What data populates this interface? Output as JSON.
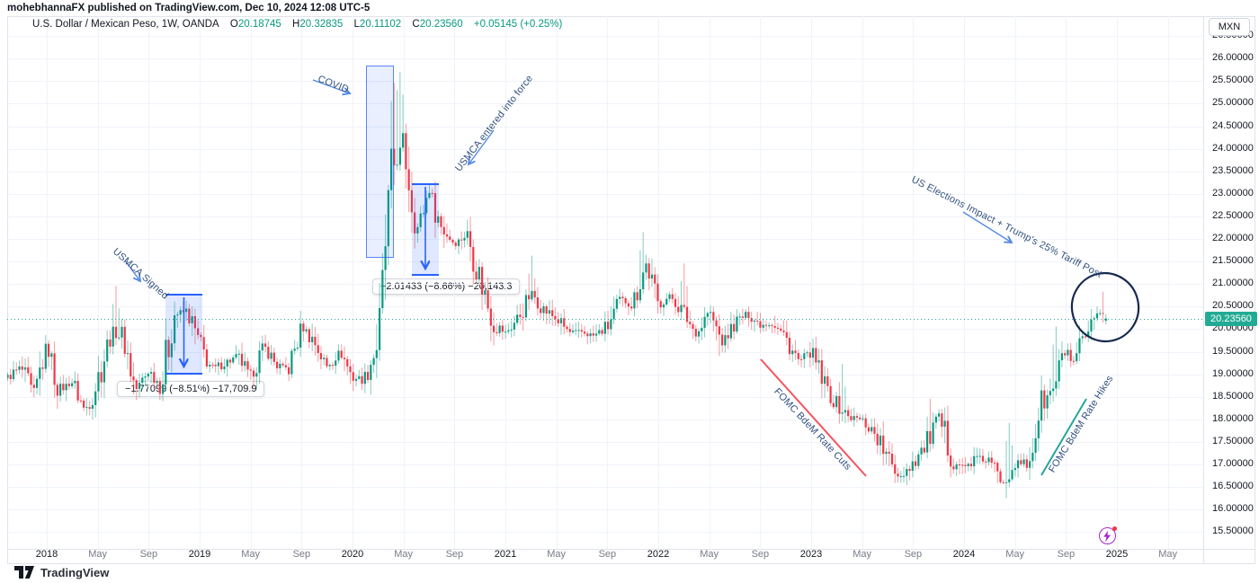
{
  "header": {
    "publisher_line": "mohebhannaFX published on TradingView.com, Dec 10, 2024 12:08 UTC-5"
  },
  "legend": {
    "title": "U.S. Dollar / Mexican Peso, 1W, OANDA",
    "o_label": "O",
    "o_value": "20.18745",
    "h_label": "H",
    "h_value": "20.32835",
    "l_label": "L",
    "l_value": "20.11102",
    "c_label": "C",
    "c_value": "20.23560",
    "change": "+0.05145 (+0.25%)"
  },
  "price_scale": {
    "currency": "MXN",
    "last_price": "20.23560",
    "labels": [
      "26.50000",
      "26.00000",
      "25.50000",
      "25.00000",
      "24.50000",
      "24.00000",
      "23.50000",
      "23.00000",
      "22.50000",
      "22.00000",
      "21.50000",
      "21.00000",
      "20.50000",
      "20.00000",
      "19.50000",
      "19.00000",
      "18.50000",
      "18.00000",
      "17.50000",
      "17.00000",
      "16.50000",
      "16.00000",
      "15.50000"
    ]
  },
  "time_scale": {
    "ticks": [
      {
        "label": "2018",
        "t": 0,
        "major": true
      },
      {
        "label": "May",
        "t": 0.333
      },
      {
        "label": "Sep",
        "t": 0.667
      },
      {
        "label": "2019",
        "t": 1,
        "major": true
      },
      {
        "label": "May",
        "t": 1.333
      },
      {
        "label": "Sep",
        "t": 1.667
      },
      {
        "label": "2020",
        "t": 2,
        "major": true
      },
      {
        "label": "May",
        "t": 2.333
      },
      {
        "label": "Sep",
        "t": 2.667
      },
      {
        "label": "2021",
        "t": 3,
        "major": true
      },
      {
        "label": "May",
        "t": 3.333
      },
      {
        "label": "Sep",
        "t": 3.667
      },
      {
        "label": "2022",
        "t": 4,
        "major": true
      },
      {
        "label": "May",
        "t": 4.333
      },
      {
        "label": "Sep",
        "t": 4.667
      },
      {
        "label": "2023",
        "t": 5,
        "major": true
      },
      {
        "label": "May",
        "t": 5.333
      },
      {
        "label": "Sep",
        "t": 5.667
      },
      {
        "label": "2024",
        "t": 6,
        "major": true
      },
      {
        "label": "May",
        "t": 6.333
      },
      {
        "label": "Sep",
        "t": 6.667
      },
      {
        "label": "2025",
        "t": 7,
        "major": true
      },
      {
        "label": "May",
        "t": 7.333
      }
    ]
  },
  "annotations": {
    "usmca_signed": "USMCA Signed",
    "covid": "COVID",
    "usmca_force": "USMCA entered into force",
    "us_elections": "US Elections Impact + Trump's 25% Tariff Post",
    "fomc_cuts": "FOMC BdeM Rate Cuts",
    "fomc_hikes": "FOMC BdeM Rate Hikes",
    "measure1": "−1.77099 (−8.51%) −17,709.9",
    "measure2": "−2.01433 (−8.66%) −20,143.3"
  },
  "footer": {
    "brand": "TradingView"
  },
  "chart_data": {
    "type": "candlestick",
    "title": "U.S. Dollar / Mexican Peso, 1W, OANDA",
    "timeframe": "1W",
    "x_unit": "years since 2018-01-01",
    "x_visible": [
      -0.26,
      7.57
    ],
    "y_visible": [
      15.11,
      26.94
    ],
    "grid_step_price": 0.5,
    "grid_step_time": 0.3333,
    "current_price": 20.2356,
    "last_bar": {
      "open": 20.18745,
      "high": 20.32835,
      "low": 20.11102,
      "close": 20.2356
    },
    "colors": {
      "up": "#089981",
      "down": "#f23645",
      "grid": "#f0f3fa",
      "price_line": "#26a69a"
    },
    "monthly_closes": [
      [
        -0.256,
        18.93
      ],
      [
        -0.17,
        19.15
      ],
      [
        -0.08,
        18.55
      ],
      [
        0,
        19.66
      ],
      [
        0.08,
        18.62
      ],
      [
        0.17,
        18.84
      ],
      [
        0.25,
        18.18
      ],
      [
        0.33,
        18.86
      ],
      [
        0.42,
        19.9
      ],
      [
        0.5,
        19.86
      ],
      [
        0.58,
        18.65
      ],
      [
        0.67,
        19.09
      ],
      [
        0.75,
        18.72
      ],
      [
        0.83,
        20.34
      ],
      [
        0.92,
        20.39
      ],
      [
        1,
        19.65
      ],
      [
        1.08,
        19.11
      ],
      [
        1.17,
        19.26
      ],
      [
        1.25,
        19.4
      ],
      [
        1.33,
        18.95
      ],
      [
        1.42,
        19.64
      ],
      [
        1.5,
        19.21
      ],
      [
        1.58,
        19.1
      ],
      [
        1.67,
        20.07
      ],
      [
        1.75,
        19.73
      ],
      [
        1.83,
        19.16
      ],
      [
        1.92,
        19.52
      ],
      [
        2,
        18.93
      ],
      [
        2.08,
        18.91
      ],
      [
        2.17,
        19.78
      ],
      [
        2.25,
        23.48
      ],
      [
        2.33,
        24.14
      ],
      [
        2.42,
        22.18
      ],
      [
        2.5,
        23.09
      ],
      [
        2.58,
        22.27
      ],
      [
        2.67,
        21.89
      ],
      [
        2.75,
        22.11
      ],
      [
        2.83,
        21.18
      ],
      [
        2.92,
        20.14
      ],
      [
        3,
        19.91
      ],
      [
        3.08,
        20.23
      ],
      [
        3.17,
        20.81
      ],
      [
        3.25,
        20.44
      ],
      [
        3.33,
        20.24
      ],
      [
        3.42,
        19.92
      ],
      [
        3.5,
        19.94
      ],
      [
        3.58,
        19.85
      ],
      [
        3.67,
        20.06
      ],
      [
        3.75,
        20.64
      ],
      [
        3.83,
        20.56
      ],
      [
        3.92,
        21.45
      ],
      [
        4,
        20.53
      ],
      [
        4.08,
        20.74
      ],
      [
        4.17,
        20.35
      ],
      [
        4.25,
        19.87
      ],
      [
        4.33,
        20.41
      ],
      [
        4.42,
        19.69
      ],
      [
        4.5,
        20.13
      ],
      [
        4.58,
        20.34
      ],
      [
        4.67,
        20.1
      ],
      [
        4.75,
        20.14
      ],
      [
        4.83,
        19.82
      ],
      [
        4.92,
        19.28
      ],
      [
        5,
        19.5
      ],
      [
        5.08,
        18.79
      ],
      [
        5.17,
        18.31
      ],
      [
        5.25,
        18.05
      ],
      [
        5.33,
        17.99
      ],
      [
        5.42,
        17.69
      ],
      [
        5.5,
        17.12
      ],
      [
        5.58,
        16.73
      ],
      [
        5.67,
        17.07
      ],
      [
        5.75,
        17.42
      ],
      [
        5.83,
        18.08
      ],
      [
        5.92,
        17.14
      ],
      [
        6,
        16.92
      ],
      [
        6.08,
        17.16
      ],
      [
        6.17,
        17.06
      ],
      [
        6.25,
        16.6
      ],
      [
        6.33,
        17.02
      ],
      [
        6.42,
        17.0
      ],
      [
        6.5,
        18.31
      ],
      [
        6.58,
        18.62
      ],
      [
        6.67,
        19.6
      ],
      [
        6.71,
        19.18
      ],
      [
        6.75,
        19.5
      ],
      [
        6.83,
        20.02
      ],
      [
        6.92,
        20.38
      ],
      [
        6.943,
        20.236
      ]
    ],
    "spike_highs": [
      [
        0.46,
        20.96
      ],
      [
        2.27,
        25.46
      ],
      [
        2.31,
        25.7
      ],
      [
        3.18,
        21.63
      ],
      [
        3.9,
        22.15
      ],
      [
        4.17,
        21.46
      ],
      [
        5.21,
        19.23
      ],
      [
        5.78,
        18.46
      ],
      [
        6.29,
        17.92
      ],
      [
        6.6,
        20.06
      ],
      [
        6.9,
        20.83
      ]
    ],
    "spike_lows": [
      [
        0.12,
        18.4
      ],
      [
        4.4,
        19.41
      ],
      [
        6.27,
        16.26
      ]
    ],
    "events": [
      {
        "t": 0.92,
        "label": "USMCA Signed"
      },
      {
        "t": 2.2,
        "label": "COVID"
      },
      {
        "t": 2.5,
        "label": "USMCA entered into force"
      },
      {
        "t": 6.85,
        "label": "US Elections Impact + Trump's 25% Tariff Post"
      }
    ]
  }
}
